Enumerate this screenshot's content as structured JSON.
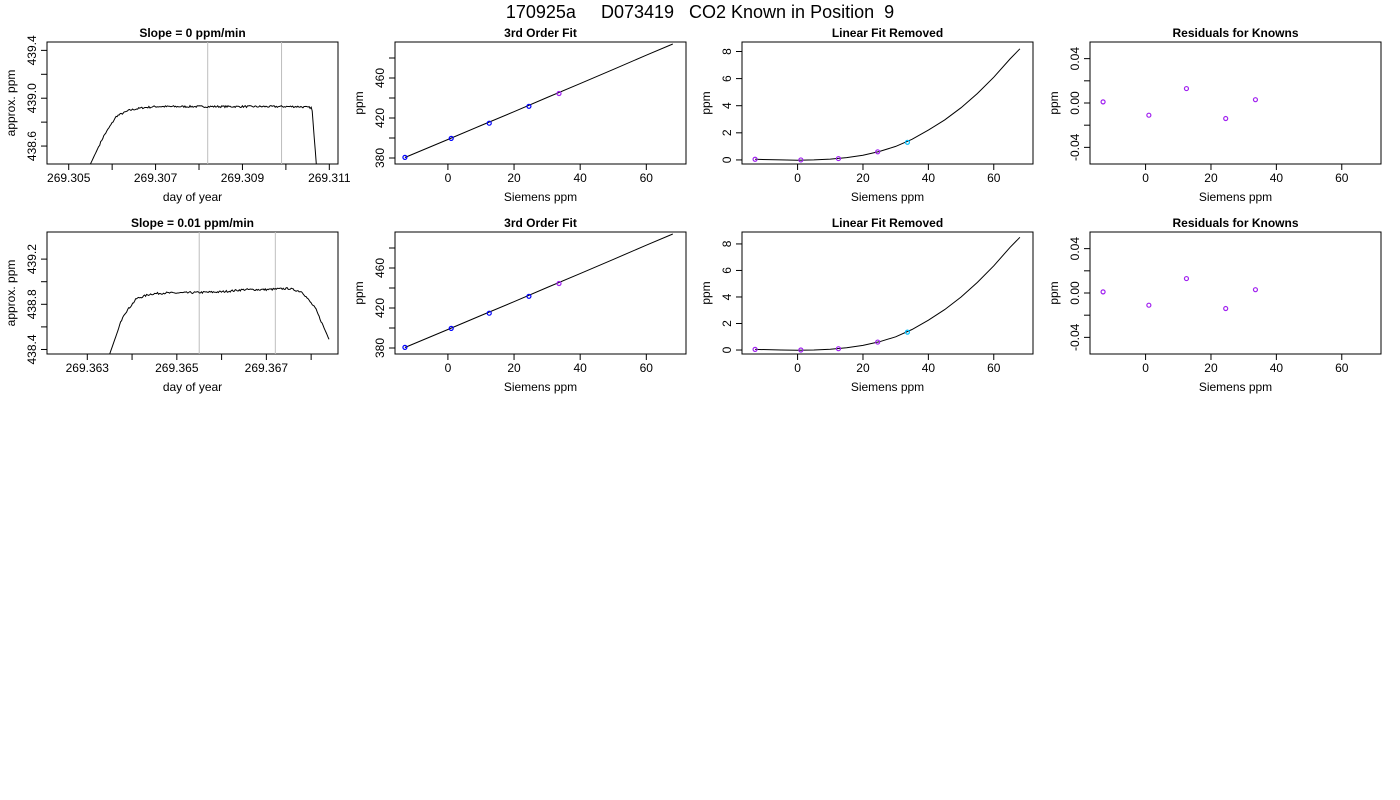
{
  "title": "170925a     D073419   CO2 Known in Position  9",
  "colors": {
    "line": "#000000",
    "vline": "#bebebe",
    "known": "#0000ff",
    "highlight": "#00bfff",
    "alt": "#a020f0",
    "tick": "#000000"
  },
  "chart_data": [
    {
      "id": "p1",
      "type": "line",
      "title": "Slope =  0  ppm/min",
      "xlabel": "day of year",
      "ylabel": "approx. ppm",
      "xlim": [
        269.3045,
        269.3112
      ],
      "ylim": [
        438.45,
        439.47
      ],
      "xticks": [
        269.305,
        269.307,
        269.309,
        269.311
      ],
      "xticklabels": [
        "269.305",
        "269.307",
        "269.309",
        "269.311"
      ],
      "xminor": [
        269.306,
        269.308,
        269.31
      ],
      "yticks": [
        438.6,
        439.0,
        439.4
      ],
      "yticklabels": [
        "438.6",
        "439.0",
        "439.4"
      ],
      "yminor": [
        438.8,
        439.2
      ],
      "vlines": [
        269.3082,
        269.3099
      ],
      "series": [
        {
          "x": [
            269.3055,
            269.3058,
            269.3061,
            269.3064,
            269.3067,
            269.307,
            269.308,
            269.309,
            269.31,
            269.3103,
            269.3106,
            269.3107
          ],
          "y": [
            438.45,
            438.68,
            438.85,
            438.9,
            438.92,
            438.93,
            438.93,
            438.93,
            438.93,
            438.93,
            438.92,
            438.45
          ],
          "noise": 0.008
        }
      ]
    },
    {
      "id": "p2",
      "type": "line",
      "title": "3rd Order Fit",
      "xlabel": "Siemens ppm",
      "ylabel": "ppm",
      "xlim": [
        -16,
        72
      ],
      "ylim": [
        374,
        496
      ],
      "xticks": [
        0,
        20,
        40,
        60
      ],
      "xticklabels": [
        "0",
        "20",
        "40",
        "60"
      ],
      "yticks": [
        380,
        420,
        460
      ],
      "yticklabels": [
        "380",
        "420",
        "460"
      ],
      "yminor": [
        400,
        440,
        480
      ],
      "curve": {
        "x": [
          -13,
          0,
          10,
          20,
          30,
          40,
          50,
          60,
          68
        ],
        "y": [
          380.5,
          398.5,
          412.5,
          426.3,
          440.5,
          454.4,
          468.6,
          482.8,
          494.0
        ]
      },
      "points": [
        {
          "x": -13,
          "y": 380.6,
          "color": "known"
        },
        {
          "x": 1,
          "y": 399.6,
          "color": "known"
        },
        {
          "x": 12.5,
          "y": 414.8,
          "color": "known"
        },
        {
          "x": 24.5,
          "y": 431.7,
          "color": "known"
        },
        {
          "x": 33.6,
          "y": 444.5,
          "color": "alt"
        }
      ]
    },
    {
      "id": "p3",
      "type": "scatter",
      "title": "Linear Fit Removed",
      "xlabel": "Siemens ppm",
      "ylabel": "ppm",
      "xlim": [
        -17,
        72
      ],
      "ylim": [
        -0.3,
        8.7
      ],
      "xticks": [
        0,
        20,
        40,
        60
      ],
      "xticklabels": [
        "0",
        "20",
        "40",
        "60"
      ],
      "yticks": [
        0,
        2,
        4,
        6,
        8
      ],
      "yticklabels": [
        "0",
        "2",
        "4",
        "6",
        "8"
      ],
      "curve": {
        "x": [
          -13,
          -5,
          0,
          5,
          10,
          15,
          20,
          25,
          30,
          35,
          40,
          45,
          50,
          55,
          60,
          65,
          68
        ],
        "y": [
          0.05,
          0.0,
          -0.02,
          0.0,
          0.06,
          0.17,
          0.35,
          0.62,
          1.0,
          1.52,
          2.2,
          2.95,
          3.85,
          4.9,
          6.1,
          7.45,
          8.2
        ]
      },
      "points": [
        {
          "x": -13,
          "y": 0.05,
          "color": "alt"
        },
        {
          "x": 1,
          "y": 0.0,
          "color": "alt"
        },
        {
          "x": 12.5,
          "y": 0.1,
          "color": "alt"
        },
        {
          "x": 24.5,
          "y": 0.6,
          "color": "alt"
        },
        {
          "x": 33.6,
          "y": 1.3,
          "color": "highlight"
        }
      ]
    },
    {
      "id": "p4",
      "type": "scatter",
      "title": "Residuals for Knowns",
      "xlabel": "Siemens ppm",
      "ylabel": "ppm",
      "xlim": [
        -17,
        72
      ],
      "ylim": [
        -0.055,
        0.055
      ],
      "xticks": [
        0,
        20,
        40,
        60
      ],
      "xticklabels": [
        "0",
        "20",
        "40",
        "60"
      ],
      "yticks": [
        -0.04,
        0.0,
        0.04
      ],
      "yticklabels": [
        "-0.04",
        "0.00",
        "0.04"
      ],
      "yminor": [
        -0.02,
        0.02
      ],
      "points": [
        {
          "x": -13,
          "y": 0.001,
          "color": "alt"
        },
        {
          "x": 1,
          "y": -0.011,
          "color": "alt"
        },
        {
          "x": 12.5,
          "y": 0.013,
          "color": "alt"
        },
        {
          "x": 24.5,
          "y": -0.014,
          "color": "alt"
        },
        {
          "x": 33.6,
          "y": 0.003,
          "color": "alt"
        }
      ]
    },
    {
      "id": "p5",
      "type": "line",
      "title": "Slope =  0.01  ppm/min",
      "xlabel": "day of year",
      "ylabel": "approx. ppm",
      "xlim": [
        269.3621,
        269.3686
      ],
      "ylim": [
        438.36,
        439.44
      ],
      "xticks": [
        269.363,
        269.365,
        269.367
      ],
      "xticklabels": [
        "269.363",
        "269.365",
        "269.367"
      ],
      "xminor": [
        269.364,
        269.366,
        269.368
      ],
      "yticks": [
        438.4,
        438.8,
        439.2
      ],
      "yticklabels": [
        "438.4",
        "438.8",
        "439.2"
      ],
      "yminor": [
        438.6,
        439.0
      ],
      "vlines": [
        269.3655,
        269.3672
      ],
      "series": [
        {
          "x": [
            269.3635,
            269.3638,
            269.3641,
            269.3644,
            269.3647,
            269.365,
            269.366,
            269.3665,
            269.367,
            269.3675,
            269.3678,
            269.3681,
            269.3684
          ],
          "y": [
            438.36,
            438.7,
            438.85,
            438.89,
            438.9,
            438.9,
            438.91,
            438.93,
            438.93,
            438.94,
            438.91,
            438.76,
            438.49
          ],
          "noise": 0.009
        }
      ]
    },
    {
      "id": "p6",
      "type": "line",
      "title": "3rd Order Fit",
      "xlabel": "Siemens ppm",
      "ylabel": "ppm",
      "xlim": [
        -16,
        72
      ],
      "ylim": [
        374,
        496
      ],
      "xticks": [
        0,
        20,
        40,
        60
      ],
      "xticklabels": [
        "0",
        "20",
        "40",
        "60"
      ],
      "yticks": [
        380,
        420,
        460
      ],
      "yticklabels": [
        "380",
        "420",
        "460"
      ],
      "yminor": [
        400,
        440,
        480
      ],
      "curve": {
        "x": [
          -13,
          0,
          10,
          20,
          30,
          40,
          50,
          60,
          68
        ],
        "y": [
          380.5,
          398.5,
          412.5,
          426.3,
          440.5,
          454.4,
          468.6,
          482.8,
          494.0
        ]
      },
      "points": [
        {
          "x": -13,
          "y": 380.6,
          "color": "known"
        },
        {
          "x": 1,
          "y": 399.6,
          "color": "known"
        },
        {
          "x": 12.5,
          "y": 414.8,
          "color": "known"
        },
        {
          "x": 24.5,
          "y": 431.7,
          "color": "known"
        },
        {
          "x": 33.6,
          "y": 444.5,
          "color": "alt"
        }
      ]
    },
    {
      "id": "p7",
      "type": "scatter",
      "title": "Linear Fit Removed",
      "xlabel": "Siemens ppm",
      "ylabel": "ppm",
      "xlim": [
        -17,
        72
      ],
      "ylim": [
        -0.3,
        8.9
      ],
      "xticks": [
        0,
        20,
        40,
        60
      ],
      "xticklabels": [
        "0",
        "20",
        "40",
        "60"
      ],
      "yticks": [
        0,
        2,
        4,
        6,
        8
      ],
      "yticklabels": [
        "0",
        "2",
        "4",
        "6",
        "8"
      ],
      "curve": {
        "x": [
          -13,
          -5,
          0,
          5,
          10,
          15,
          20,
          25,
          30,
          35,
          40,
          45,
          50,
          55,
          60,
          65,
          68
        ],
        "y": [
          0.05,
          0.0,
          -0.02,
          0.0,
          0.06,
          0.17,
          0.35,
          0.62,
          1.0,
          1.55,
          2.25,
          3.05,
          4.0,
          5.1,
          6.35,
          7.75,
          8.5
        ]
      },
      "points": [
        {
          "x": -13,
          "y": 0.05,
          "color": "alt"
        },
        {
          "x": 1,
          "y": 0.0,
          "color": "alt"
        },
        {
          "x": 12.5,
          "y": 0.1,
          "color": "alt"
        },
        {
          "x": 24.5,
          "y": 0.6,
          "color": "alt"
        },
        {
          "x": 33.6,
          "y": 1.35,
          "color": "highlight"
        }
      ]
    },
    {
      "id": "p8",
      "type": "scatter",
      "title": "Residuals for Knowns",
      "xlabel": "Siemens ppm",
      "ylabel": "ppm",
      "xlim": [
        -17,
        72
      ],
      "ylim": [
        -0.055,
        0.055
      ],
      "xticks": [
        0,
        20,
        40,
        60
      ],
      "xticklabels": [
        "0",
        "20",
        "40",
        "60"
      ],
      "yticks": [
        -0.04,
        0.0,
        0.04
      ],
      "yticklabels": [
        "-0.04",
        "0.00",
        "0.04"
      ],
      "yminor": [
        -0.02,
        0.02
      ],
      "points": [
        {
          "x": -13,
          "y": 0.001,
          "color": "alt"
        },
        {
          "x": 1,
          "y": -0.011,
          "color": "alt"
        },
        {
          "x": 12.5,
          "y": 0.013,
          "color": "alt"
        },
        {
          "x": 24.5,
          "y": -0.014,
          "color": "alt"
        },
        {
          "x": 33.6,
          "y": 0.003,
          "color": "alt"
        }
      ]
    }
  ]
}
